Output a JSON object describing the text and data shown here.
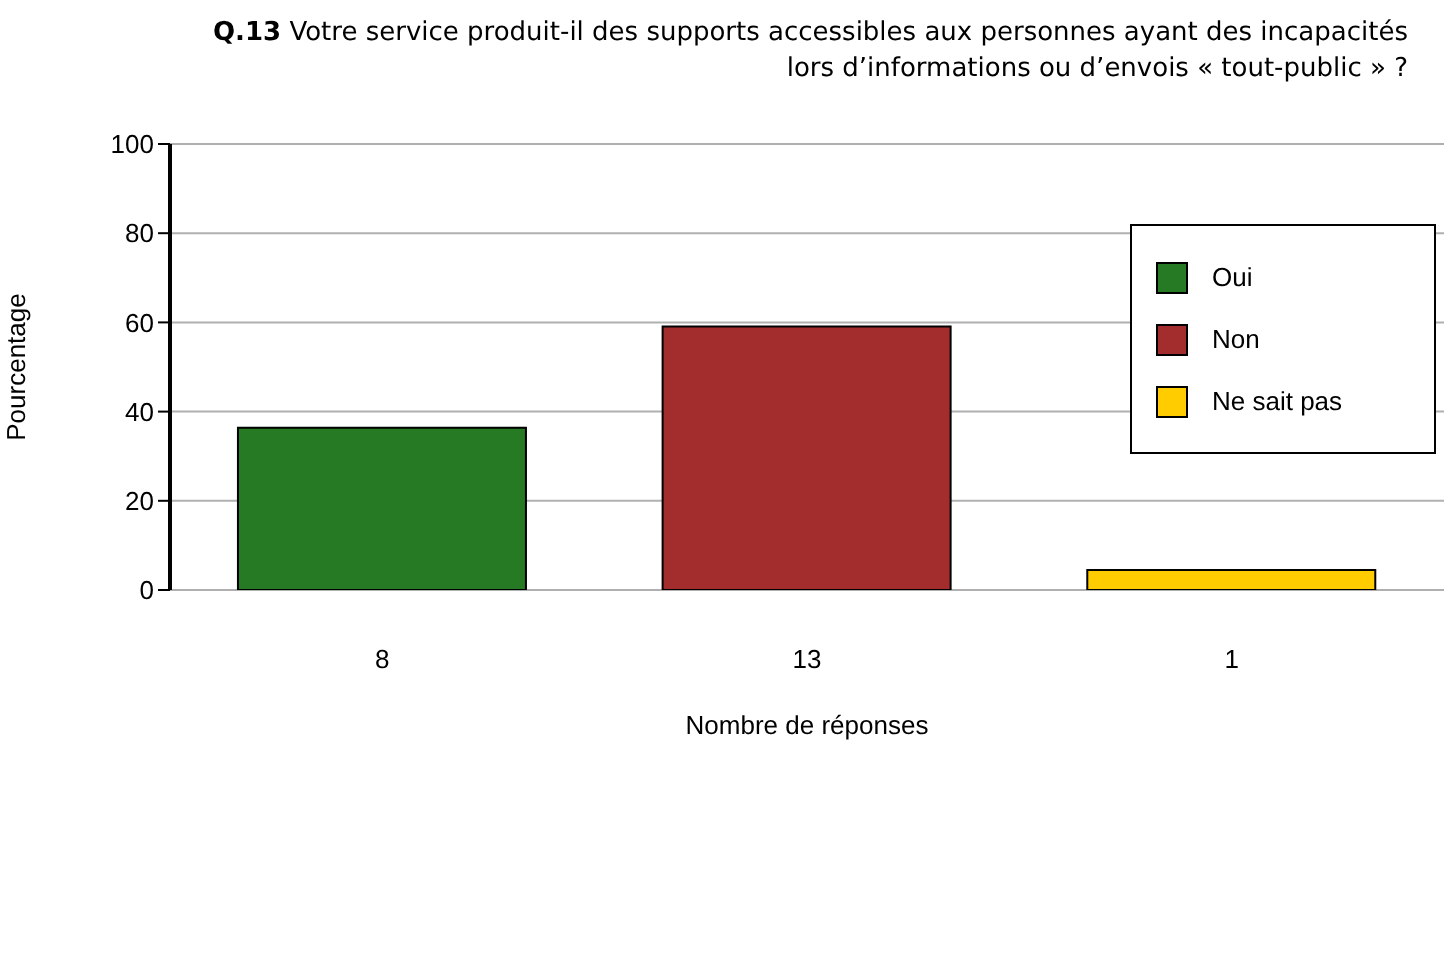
{
  "chart_data": {
    "type": "bar",
    "title": "Q.13 Votre service produit-il des supports accessibles aux personnes ayant des incapacités lors d’informations ou d’envois « tout-public » ?",
    "xlabel": "Nombre de réponses",
    "ylabel": "Pourcentage",
    "categories": [
      "8",
      "13",
      "1"
    ],
    "stacked": true,
    "series": [
      {
        "name": "Oui",
        "color": "#267a23",
        "values": [
          36.4,
          null,
          null
        ]
      },
      {
        "name": "Non",
        "color": "#a32d2d",
        "values": [
          null,
          59.1,
          null
        ]
      },
      {
        "name": "Ne sait pas",
        "color": "#ffcc00",
        "values": [
          null,
          null,
          4.5
        ]
      }
    ],
    "ylim": [
      0,
      100
    ],
    "yticks": [
      0,
      20,
      40,
      60,
      80,
      100
    ],
    "grid": "y",
    "legend": "top right"
  }
}
